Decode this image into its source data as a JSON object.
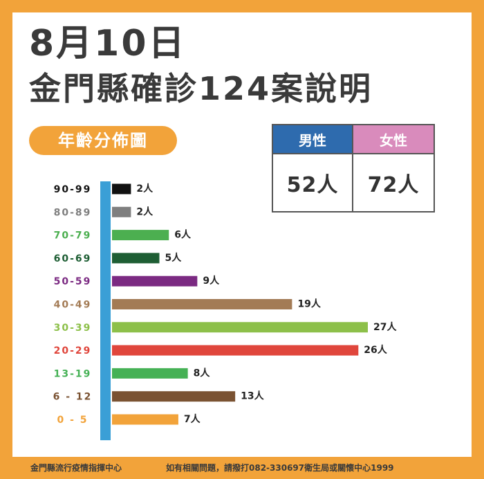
{
  "header": {
    "title_line1": "8月10日",
    "title_line2": "金門縣確診124案說明",
    "section_label": "年齡分佈圖"
  },
  "gender_table": {
    "male_label": "男性",
    "female_label": "女性",
    "male_count": "52人",
    "female_count": "72人",
    "male_color": "#2E6BAE",
    "female_color": "#D98BBC"
  },
  "chart_data": {
    "type": "bar",
    "orientation": "horizontal",
    "title": "",
    "xlabel": "",
    "ylabel": "",
    "xlim": [
      0,
      28
    ],
    "grid": false,
    "legend": "none",
    "axis_color": "#3A9FD6",
    "categories": [
      "90-99",
      "80-89",
      "70-79",
      "60-69",
      "50-59",
      "40-49",
      "30-39",
      "20-29",
      "13-19",
      "6-12",
      "0-5"
    ],
    "category_labels": [
      "90-99",
      "80-89",
      "70-79",
      "60-69",
      "50-59",
      "40-49",
      "30-39",
      "20-29",
      "13-19",
      "6 - 12",
      "0 - 5"
    ],
    "values": [
      2,
      2,
      6,
      5,
      9,
      19,
      27,
      26,
      8,
      13,
      7
    ],
    "value_labels": [
      "2人",
      "2人",
      "6人",
      "5人",
      "9人",
      "19人",
      "27人",
      "26人",
      "8人",
      "13人",
      "7人"
    ],
    "colors": [
      "#111111",
      "#7F7F7F",
      "#4CAF50",
      "#1E5E34",
      "#7B2A82",
      "#A37B55",
      "#8DC04A",
      "#E0463C",
      "#45B155",
      "#7A5232",
      "#F2A33A"
    ]
  },
  "footer": {
    "left_text": "金門縣流行疫情指揮中心",
    "right_text": "如有相關問題，請撥打082-330697衛生局或關懷中心1999"
  }
}
